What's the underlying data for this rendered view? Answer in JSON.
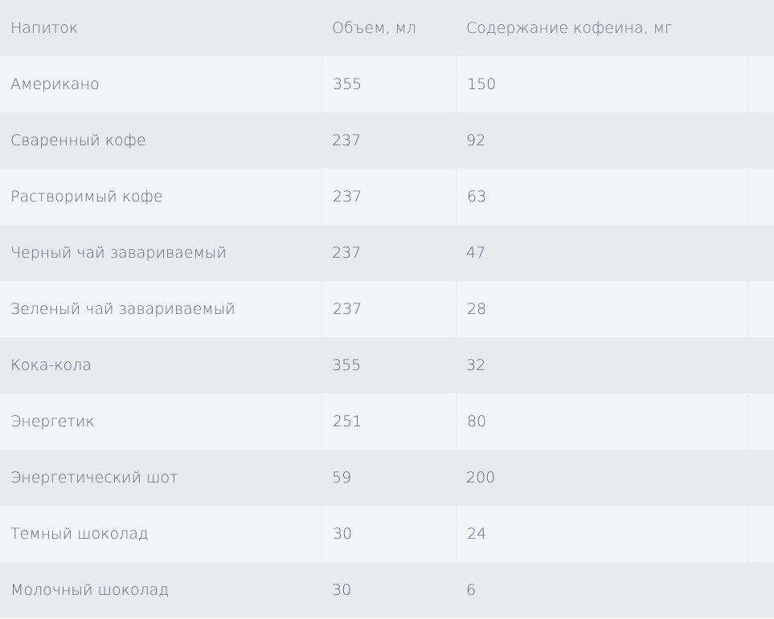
{
  "table": {
    "headers": [
      "Напиток",
      "Объем, мл",
      "Содержание кофеина, мг"
    ],
    "rows": [
      [
        "Американо",
        "355",
        "150"
      ],
      [
        "Сваренный кофе",
        "237",
        "92"
      ],
      [
        "Растворимый кофе",
        "237",
        "63"
      ],
      [
        "Черный чай завариваемый",
        "237",
        "47"
      ],
      [
        "Зеленый чай завариваемый",
        "237",
        "28"
      ],
      [
        "Кока-кола",
        "355",
        "32"
      ],
      [
        "Энергетик",
        "251",
        "80"
      ],
      [
        "Энергетический шот",
        "59",
        "200"
      ],
      [
        "Темный шоколад",
        "30",
        "24"
      ],
      [
        "Молочный шоколад",
        "30",
        "6"
      ]
    ]
  }
}
